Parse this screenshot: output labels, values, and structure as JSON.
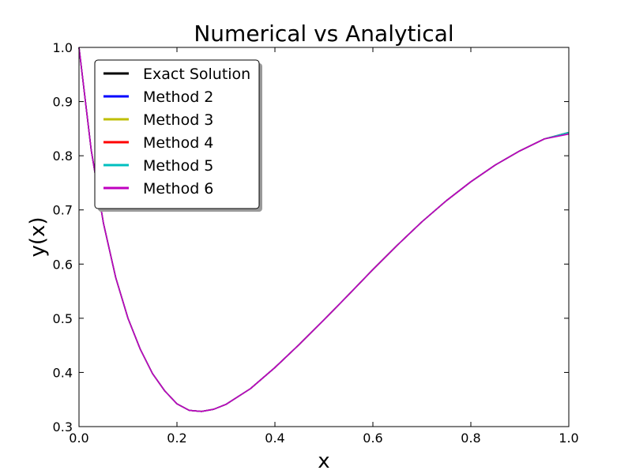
{
  "chart_data": {
    "type": "line",
    "title": "Numerical vs Analytical",
    "xlabel": "x",
    "ylabel": "y(x)",
    "xlim": [
      0.0,
      1.0
    ],
    "ylim": [
      0.3,
      1.0
    ],
    "xticks": [
      "0.0",
      "0.2",
      "0.4",
      "0.6",
      "0.8",
      "1.0"
    ],
    "yticks": [
      "0.3",
      "0.4",
      "0.5",
      "0.6",
      "0.7",
      "0.8",
      "0.9",
      "1.0"
    ],
    "grid": false,
    "legend_position": "top-left",
    "x": [
      0.0,
      0.025,
      0.05,
      0.075,
      0.1,
      0.125,
      0.15,
      0.175,
      0.2,
      0.225,
      0.25,
      0.275,
      0.3,
      0.35,
      0.4,
      0.45,
      0.5,
      0.55,
      0.6,
      0.65,
      0.7,
      0.75,
      0.8,
      0.85,
      0.9,
      0.95,
      1.0
    ],
    "series": [
      {
        "name": "Exact Solution",
        "color": "#000000",
        "values": [
          1.0,
          0.81,
          0.675,
          0.575,
          0.5,
          0.443,
          0.398,
          0.366,
          0.342,
          0.33,
          0.328,
          0.332,
          0.341,
          0.37,
          0.409,
          0.452,
          0.497,
          0.543,
          0.59,
          0.635,
          0.678,
          0.717,
          0.752,
          0.783,
          0.809,
          0.831,
          0.843
        ]
      },
      {
        "name": "Method 2",
        "color": "#0000ff",
        "values": [
          1.0,
          0.81,
          0.675,
          0.575,
          0.5,
          0.443,
          0.398,
          0.366,
          0.342,
          0.33,
          0.328,
          0.332,
          0.341,
          0.37,
          0.409,
          0.452,
          0.497,
          0.543,
          0.59,
          0.635,
          0.678,
          0.717,
          0.752,
          0.783,
          0.809,
          0.831,
          0.843
        ]
      },
      {
        "name": "Method 3",
        "color": "#bfbf00",
        "values": [
          1.0,
          0.81,
          0.675,
          0.575,
          0.5,
          0.443,
          0.398,
          0.366,
          0.342,
          0.33,
          0.328,
          0.332,
          0.341,
          0.37,
          0.409,
          0.452,
          0.497,
          0.543,
          0.59,
          0.635,
          0.678,
          0.717,
          0.752,
          0.783,
          0.809,
          0.831,
          0.843
        ]
      },
      {
        "name": "Method 4",
        "color": "#ff0000",
        "values": [
          1.0,
          0.81,
          0.675,
          0.575,
          0.5,
          0.443,
          0.398,
          0.366,
          0.342,
          0.33,
          0.328,
          0.332,
          0.341,
          0.37,
          0.409,
          0.452,
          0.497,
          0.543,
          0.59,
          0.635,
          0.678,
          0.717,
          0.752,
          0.783,
          0.809,
          0.831,
          0.843
        ]
      },
      {
        "name": "Method 5",
        "color": "#00bfbf",
        "values": [
          1.0,
          0.81,
          0.675,
          0.575,
          0.5,
          0.443,
          0.398,
          0.366,
          0.342,
          0.33,
          0.328,
          0.332,
          0.341,
          0.37,
          0.409,
          0.452,
          0.497,
          0.543,
          0.59,
          0.635,
          0.678,
          0.717,
          0.752,
          0.783,
          0.809,
          0.831,
          0.843
        ]
      },
      {
        "name": "Method 6",
        "color": "#bf00bf",
        "values": [
          1.0,
          0.81,
          0.675,
          0.575,
          0.5,
          0.443,
          0.398,
          0.366,
          0.342,
          0.33,
          0.328,
          0.332,
          0.341,
          0.37,
          0.409,
          0.452,
          0.497,
          0.543,
          0.59,
          0.635,
          0.678,
          0.717,
          0.752,
          0.783,
          0.809,
          0.831,
          0.84
        ]
      }
    ]
  }
}
